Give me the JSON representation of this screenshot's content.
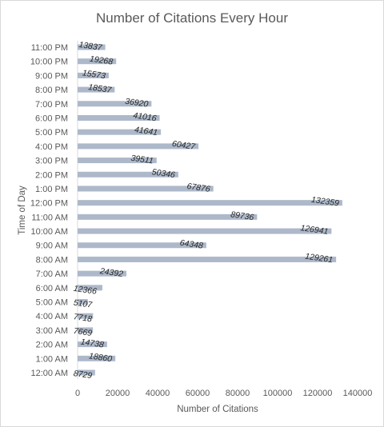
{
  "chart_data": {
    "type": "bar",
    "orientation": "horizontal",
    "title": "Number of Citations Every Hour",
    "xlabel": "Number  of Citations",
    "ylabel": "Time of Day",
    "xlim": [
      0,
      140000
    ],
    "xticks": [
      0,
      20000,
      40000,
      60000,
      80000,
      100000,
      120000,
      140000
    ],
    "grid": false,
    "bar_color": "#adb9ca",
    "categories": [
      "12:00 AM",
      "1:00 AM",
      "2:00 AM",
      "3:00 AM",
      "4:00 AM",
      "5:00 AM",
      "6:00 AM",
      "7:00 AM",
      "8:00 AM",
      "9:00 AM",
      "10:00 AM",
      "11:00 AM",
      "12:00 PM",
      "1:00 PM",
      "2:00 PM",
      "3:00 PM",
      "4:00 PM",
      "5:00 PM",
      "6:00 PM",
      "7:00 PM",
      "8:00 PM",
      "9:00 PM",
      "10:00 PM",
      "11:00 PM"
    ],
    "values": [
      8729,
      18860,
      14738,
      7669,
      7718,
      5107,
      12366,
      24392,
      129261,
      64348,
      126941,
      89736,
      132359,
      67876,
      50346,
      39511,
      60427,
      41641,
      41016,
      36920,
      18537,
      15573,
      19268,
      13837
    ]
  }
}
